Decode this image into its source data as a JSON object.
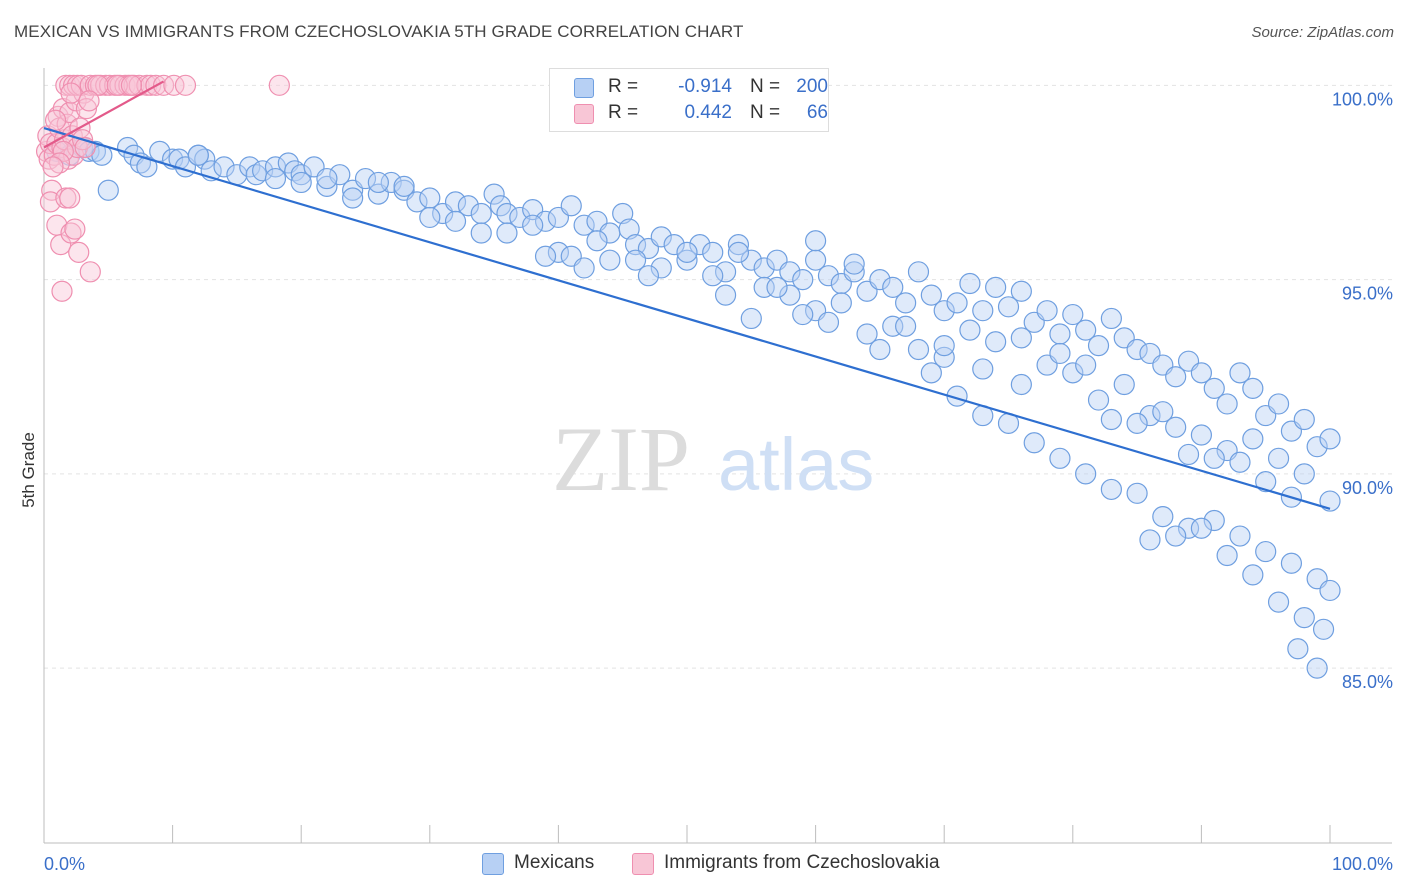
{
  "title": "MEXICAN VS IMMIGRANTS FROM CZECHOSLOVAKIA 5TH GRADE CORRELATION CHART",
  "source": "Source: ZipAtlas.com",
  "watermark": {
    "zip": "ZIP",
    "atlas": "atlas"
  },
  "colors": {
    "blue": "#6f9fe0",
    "blue_fill": "#b7d0f4",
    "blue_line": "#2e6fd0",
    "pink": "#ef8fb0",
    "pink_fill": "#f8c6d6",
    "pink_line": "#e35a8a",
    "axis_text": "#3a6fc9"
  },
  "legend": {
    "rows": [
      {
        "r_label": "R =",
        "r_value": "-0.914",
        "n_label": "N =",
        "n_value": "200"
      },
      {
        "r_label": "R =",
        "r_value": "0.442",
        "n_label": "N =",
        "n_value": "66"
      }
    ]
  },
  "chart_data": {
    "type": "scatter",
    "title": "MEXICAN VS IMMIGRANTS FROM CZECHOSLOVAKIA 5TH GRADE CORRELATION CHART",
    "xlabel": "",
    "ylabel": "5th Grade",
    "xlim": [
      0,
      100
    ],
    "ylim": [
      80.5,
      100.6
    ],
    "x_tick_labels": [
      "0.0%",
      "100.0%"
    ],
    "y_ticks": [
      85,
      90,
      95,
      100
    ],
    "y_tick_labels": [
      "85.0%",
      "90.0%",
      "95.0%",
      "100.0%"
    ],
    "grid": true,
    "legend_position": "top-center",
    "series": [
      {
        "name": "Mexicans",
        "color": "#6f9fe0",
        "trend": {
          "x": [
            0,
            100
          ],
          "y": [
            98.9,
            89.1
          ]
        },
        "points": [
          [
            1,
            98.3
          ],
          [
            2,
            98.2
          ],
          [
            3,
            98.4
          ],
          [
            3.5,
            98.3
          ],
          [
            4,
            98.3
          ],
          [
            4.5,
            98.2
          ],
          [
            5,
            97.3
          ],
          [
            6.5,
            98.4
          ],
          [
            7,
            98.2
          ],
          [
            7.5,
            98.0
          ],
          [
            8,
            97.9
          ],
          [
            9,
            98.3
          ],
          [
            10,
            98.1
          ],
          [
            10.5,
            98.1
          ],
          [
            11,
            97.9
          ],
          [
            12,
            98.2
          ],
          [
            12.5,
            98.1
          ],
          [
            13,
            97.8
          ],
          [
            14,
            97.9
          ],
          [
            15,
            97.7
          ],
          [
            16,
            97.9
          ],
          [
            16.5,
            97.7
          ],
          [
            17,
            97.8
          ],
          [
            18,
            97.9
          ],
          [
            19,
            98.0
          ],
          [
            19.5,
            97.8
          ],
          [
            20,
            97.7
          ],
          [
            21,
            97.9
          ],
          [
            22,
            97.4
          ],
          [
            23,
            97.7
          ],
          [
            24,
            97.3
          ],
          [
            25,
            97.6
          ],
          [
            26,
            97.2
          ],
          [
            27,
            97.5
          ],
          [
            28,
            97.3
          ],
          [
            29,
            97.0
          ],
          [
            30,
            97.1
          ],
          [
            31,
            96.7
          ],
          [
            32,
            97.0
          ],
          [
            33,
            96.9
          ],
          [
            34,
            96.7
          ],
          [
            35,
            97.2
          ],
          [
            35.5,
            96.9
          ],
          [
            36,
            96.7
          ],
          [
            37,
            96.6
          ],
          [
            38,
            96.8
          ],
          [
            39,
            96.5
          ],
          [
            40,
            96.6
          ],
          [
            41,
            96.9
          ],
          [
            42,
            96.4
          ],
          [
            43,
            96.5
          ],
          [
            44,
            96.2
          ],
          [
            45,
            96.7
          ],
          [
            45.5,
            96.3
          ],
          [
            46,
            95.9
          ],
          [
            47,
            95.8
          ],
          [
            48,
            96.1
          ],
          [
            49,
            95.9
          ],
          [
            50,
            95.5
          ],
          [
            51,
            95.9
          ],
          [
            52,
            95.7
          ],
          [
            53,
            95.2
          ],
          [
            54,
            95.9
          ],
          [
            55,
            95.5
          ],
          [
            56,
            95.3
          ],
          [
            57,
            95.5
          ],
          [
            58,
            95.2
          ],
          [
            59,
            95.0
          ],
          [
            60,
            95.5
          ],
          [
            61,
            95.1
          ],
          [
            62,
            94.9
          ],
          [
            63,
            95.2
          ],
          [
            64,
            94.7
          ],
          [
            65,
            95.0
          ],
          [
            66,
            94.8
          ],
          [
            67,
            94.4
          ],
          [
            68,
            95.2
          ],
          [
            69,
            94.6
          ],
          [
            70,
            94.2
          ],
          [
            71,
            94.4
          ],
          [
            72,
            94.9
          ],
          [
            73,
            94.2
          ],
          [
            74,
            94.8
          ],
          [
            75,
            94.3
          ],
          [
            76,
            94.7
          ],
          [
            77,
            93.9
          ],
          [
            78,
            94.2
          ],
          [
            79,
            93.6
          ],
          [
            80,
            94.1
          ],
          [
            81,
            93.7
          ],
          [
            82,
            93.3
          ],
          [
            83,
            94.0
          ],
          [
            84,
            93.5
          ],
          [
            85,
            93.2
          ],
          [
            86,
            93.1
          ],
          [
            87,
            92.8
          ],
          [
            88,
            92.5
          ],
          [
            89,
            92.9
          ],
          [
            90,
            92.6
          ],
          [
            91,
            92.2
          ],
          [
            92,
            91.8
          ],
          [
            93,
            92.6
          ],
          [
            94,
            92.2
          ],
          [
            95,
            91.5
          ],
          [
            96,
            91.8
          ],
          [
            97,
            91.1
          ],
          [
            98,
            91.4
          ],
          [
            99,
            90.7
          ],
          [
            100,
            90.9
          ],
          [
            12,
            98.2
          ],
          [
            18,
            97.6
          ],
          [
            22,
            97.6
          ],
          [
            26,
            97.5
          ],
          [
            28,
            97.4
          ],
          [
            32,
            96.5
          ],
          [
            38,
            96.4
          ],
          [
            40,
            95.7
          ],
          [
            43,
            96.0
          ],
          [
            46,
            95.5
          ],
          [
            48,
            95.3
          ],
          [
            50,
            95.7
          ],
          [
            52,
            95.1
          ],
          [
            56,
            94.8
          ],
          [
            58,
            94.6
          ],
          [
            60,
            94.2
          ],
          [
            62,
            94.4
          ],
          [
            64,
            93.6
          ],
          [
            66,
            93.8
          ],
          [
            68,
            93.2
          ],
          [
            70,
            93.0
          ],
          [
            72,
            93.7
          ],
          [
            74,
            93.4
          ],
          [
            76,
            93.5
          ],
          [
            78,
            92.8
          ],
          [
            80,
            92.6
          ],
          [
            82,
            91.9
          ],
          [
            84,
            92.3
          ],
          [
            86,
            91.5
          ],
          [
            88,
            91.2
          ],
          [
            90,
            91.0
          ],
          [
            92,
            90.6
          ],
          [
            94,
            90.9
          ],
          [
            96,
            90.4
          ],
          [
            98,
            90.0
          ],
          [
            100,
            89.3
          ],
          [
            30,
            96.6
          ],
          [
            44,
            95.5
          ],
          [
            54,
            95.7
          ],
          [
            57,
            94.8
          ],
          [
            60,
            96.0
          ],
          [
            63,
            95.4
          ],
          [
            67,
            93.8
          ],
          [
            70,
            93.3
          ],
          [
            73,
            92.7
          ],
          [
            76,
            92.3
          ],
          [
            79,
            93.1
          ],
          [
            81,
            92.8
          ],
          [
            83,
            91.4
          ],
          [
            85,
            91.3
          ],
          [
            87,
            91.6
          ],
          [
            89,
            90.5
          ],
          [
            91,
            90.4
          ],
          [
            93,
            90.3
          ],
          [
            95,
            89.8
          ],
          [
            97,
            89.4
          ],
          [
            20,
            97.5
          ],
          [
            24,
            97.1
          ],
          [
            34,
            96.2
          ],
          [
            36,
            96.2
          ],
          [
            39,
            95.6
          ],
          [
            41,
            95.6
          ],
          [
            42,
            95.3
          ],
          [
            47,
            95.1
          ],
          [
            53,
            94.6
          ],
          [
            55,
            94.0
          ],
          [
            59,
            94.1
          ],
          [
            61,
            93.9
          ],
          [
            65,
            93.2
          ],
          [
            69,
            92.6
          ],
          [
            71,
            92.0
          ],
          [
            73,
            91.5
          ],
          [
            75,
            91.3
          ],
          [
            77,
            90.8
          ],
          [
            79,
            90.4
          ],
          [
            81,
            90.0
          ],
          [
            83,
            89.6
          ],
          [
            85,
            89.5
          ],
          [
            87,
            88.9
          ],
          [
            89,
            88.6
          ],
          [
            91,
            88.8
          ],
          [
            93,
            88.4
          ],
          [
            95,
            88.0
          ],
          [
            97,
            87.7
          ],
          [
            99,
            87.3
          ],
          [
            100,
            87.0
          ],
          [
            86,
            88.3
          ],
          [
            88,
            88.4
          ],
          [
            90,
            88.6
          ],
          [
            92,
            87.9
          ],
          [
            94,
            87.4
          ],
          [
            96,
            86.7
          ],
          [
            98,
            86.3
          ],
          [
            99.5,
            86.0
          ],
          [
            97.5,
            85.5
          ],
          [
            99,
            85.0
          ]
        ]
      },
      {
        "name": "Immigrants from Czechoslovakia",
        "color": "#ef8fb0",
        "trend": {
          "x": [
            0,
            9.3
          ],
          "y": [
            98.4,
            100.1
          ]
        },
        "points": [
          [
            0.2,
            98.3
          ],
          [
            0.3,
            98.7
          ],
          [
            0.4,
            98.1
          ],
          [
            0.5,
            98.5
          ],
          [
            0.6,
            97.3
          ],
          [
            0.5,
            97.0
          ],
          [
            0.8,
            98.2
          ],
          [
            1.0,
            98.5
          ],
          [
            1.1,
            99.2
          ],
          [
            1.2,
            98.9
          ],
          [
            1.4,
            98.4
          ],
          [
            1.5,
            99.4
          ],
          [
            1.6,
            98.6
          ],
          [
            1.8,
            99.0
          ],
          [
            1.9,
            98.1
          ],
          [
            2.0,
            99.3
          ],
          [
            2.2,
            98.7
          ],
          [
            2.3,
            98.2
          ],
          [
            2.5,
            99.6
          ],
          [
            2.6,
            98.4
          ],
          [
            2.8,
            98.9
          ],
          [
            3.0,
            98.6
          ],
          [
            3.1,
            99.8
          ],
          [
            3.3,
            99.4
          ],
          [
            1.0,
            96.4
          ],
          [
            1.3,
            95.9
          ],
          [
            1.7,
            97.1
          ],
          [
            2.1,
            96.2
          ],
          [
            2.7,
            95.7
          ],
          [
            3.6,
            95.2
          ],
          [
            1.4,
            94.7
          ],
          [
            2.0,
            97.1
          ],
          [
            2.4,
            96.3
          ],
          [
            3.2,
            98.4
          ],
          [
            0.9,
            99.1
          ],
          [
            1.5,
            98.3
          ],
          [
            1.7,
            100.0
          ],
          [
            2.0,
            100.0
          ],
          [
            2.3,
            100.0
          ],
          [
            2.6,
            100.0
          ],
          [
            2.9,
            100.0
          ],
          [
            3.6,
            100.0
          ],
          [
            4.0,
            100.0
          ],
          [
            4.4,
            100.0
          ],
          [
            4.8,
            100.0
          ],
          [
            5.1,
            100.0
          ],
          [
            5.5,
            100.0
          ],
          [
            5.9,
            100.0
          ],
          [
            6.3,
            100.0
          ],
          [
            6.6,
            100.0
          ],
          [
            7.0,
            100.0
          ],
          [
            7.4,
            100.0
          ],
          [
            8.0,
            100.0
          ],
          [
            8.3,
            100.0
          ],
          [
            8.7,
            100.0
          ],
          [
            9.3,
            100.0
          ],
          [
            10.1,
            100.0
          ],
          [
            11.0,
            100.0
          ],
          [
            18.3,
            100.0
          ],
          [
            4.2,
            100.0
          ],
          [
            5.7,
            100.0
          ],
          [
            6.8,
            100.0
          ],
          [
            2.1,
            99.8
          ],
          [
            3.5,
            99.6
          ],
          [
            1.2,
            98.0
          ],
          [
            0.7,
            97.9
          ]
        ]
      }
    ]
  },
  "bottom_legend": [
    {
      "label": "Mexicans"
    },
    {
      "label": "Immigrants from Czechoslovakia"
    }
  ]
}
